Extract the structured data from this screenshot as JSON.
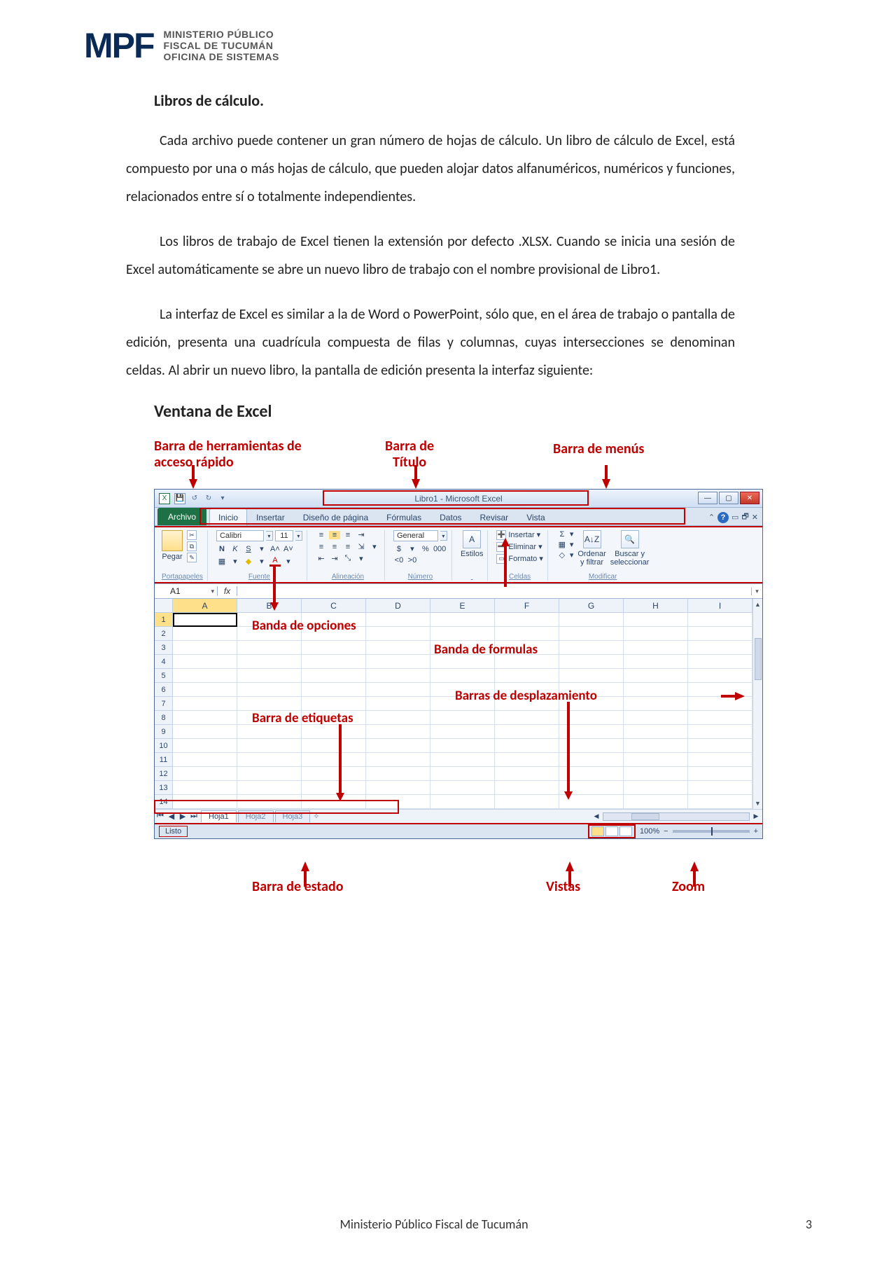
{
  "header": {
    "logo_text": "MPF",
    "org_line1": "MINISTERIO PÚBLICO",
    "org_line2": "FISCAL DE TUCUMÁN",
    "org_line3": "OFICINA DE SISTEMAS",
    "logo_color": "#0b2b57"
  },
  "section": {
    "heading": "Libros de cálculo.",
    "p1": "Cada archivo puede contener un gran número de hojas de cálculo. Un libro de cálculo de Excel, está compuesto por una o más hojas de cálculo, que pueden alojar datos alfanuméricos, numéricos y funciones, relacionados entre sí o totalmente independientes.",
    "p2": "Los libros de trabajo de Excel tienen la extensión por defecto .XLSX. Cuando se inicia una sesión de Excel automáticamente se abre un nuevo libro de trabajo con el nombre provisional de Libro1.",
    "p3": "La interfaz de Excel es similar a la de Word o PowerPoint, sólo que, en el área de trabajo o pantalla de edición, presenta una cuadrícula compuesta de filas y columnas, cuyas intersecciones se denominan celdas. Al abrir un nuevo libro, la pantalla de edición presenta la interfaz siguiente:",
    "sub": "Ventana de Excel"
  },
  "callouts": {
    "qat": "Barra de herramientas de\nacceso rápido",
    "title": "Barra de\nTítulo",
    "menus": "Barra de menús",
    "ribbon": "Banda de opciones",
    "formula": "Banda de formulas",
    "scroll": "Barras de desplazamiento",
    "tabs": "Barra de etiquetas",
    "status": "Barra de estado",
    "views": "Vistas",
    "zoom": "Zoom",
    "color": "#c00000"
  },
  "excel": {
    "title": "Libro1  -  Microsoft Excel",
    "qat_icons": [
      "X",
      "💾",
      "↺",
      "↻",
      "▾"
    ],
    "win_buttons": [
      "—",
      "▢",
      "✕"
    ],
    "file_tab": "Archivo",
    "tabs": [
      "Inicio",
      "Insertar",
      "Diseño de página",
      "Fórmulas",
      "Datos",
      "Revisar",
      "Vista"
    ],
    "active_tab": "Inicio",
    "mdi_buttons": [
      "⌃",
      "?",
      "⧉",
      "🗗",
      "✕"
    ],
    "ribbon": {
      "clipboard": {
        "paste": "Pegar",
        "label": "Portapapeles"
      },
      "font": {
        "name": "Calibri",
        "size": "11",
        "row2": [
          "N",
          "K",
          "S",
          "▾",
          "A˄",
          "A˅"
        ],
        "row3": [
          "▦",
          "▾",
          "◆",
          "▾",
          "A",
          "▾"
        ],
        "label": "Fuente"
      },
      "align": {
        "label": "Alineación"
      },
      "number": {
        "format": "General",
        "row2": [
          "$",
          "▾",
          "%",
          "000"
        ],
        "row3": [
          "˂0",
          "˃0"
        ],
        "label": "Número"
      },
      "styles": {
        "btn": "Estilos",
        "label": ""
      },
      "cells": {
        "insert": "Insertar",
        "delete": "Eliminar",
        "format": "Formato",
        "label": "Celdas"
      },
      "editing": {
        "sort": "Ordenar\ny filtrar",
        "find": "Buscar y\nseleccionar",
        "label": "Modificar"
      }
    },
    "namebox": "A1",
    "fx": "fx",
    "formula_value": "",
    "columns": [
      "A",
      "B",
      "C",
      "D",
      "E",
      "F",
      "G",
      "H",
      "I"
    ],
    "rows": [
      1,
      2,
      3,
      4,
      5,
      6,
      7,
      8,
      9,
      10,
      11,
      12,
      13,
      14
    ],
    "active_cell": "A1",
    "sheet_tabs": [
      "Hoja1",
      "Hoja2",
      "Hoja3"
    ],
    "active_sheet": "Hoja1",
    "status_ready": "Listo",
    "zoom": "100%",
    "zoom_minus": "−",
    "zoom_plus": "+",
    "colors": {
      "window_border": "#4a6b98",
      "ribbon_bg": "#f3f7fc",
      "header_bg": "#dbe5f1",
      "red": "#c00000",
      "col_active_bg": "#ffe08a",
      "file_tab_bg": "#1e7145"
    }
  },
  "footer": {
    "center": "Ministerio Público Fiscal de Tucumán",
    "page": "3"
  }
}
